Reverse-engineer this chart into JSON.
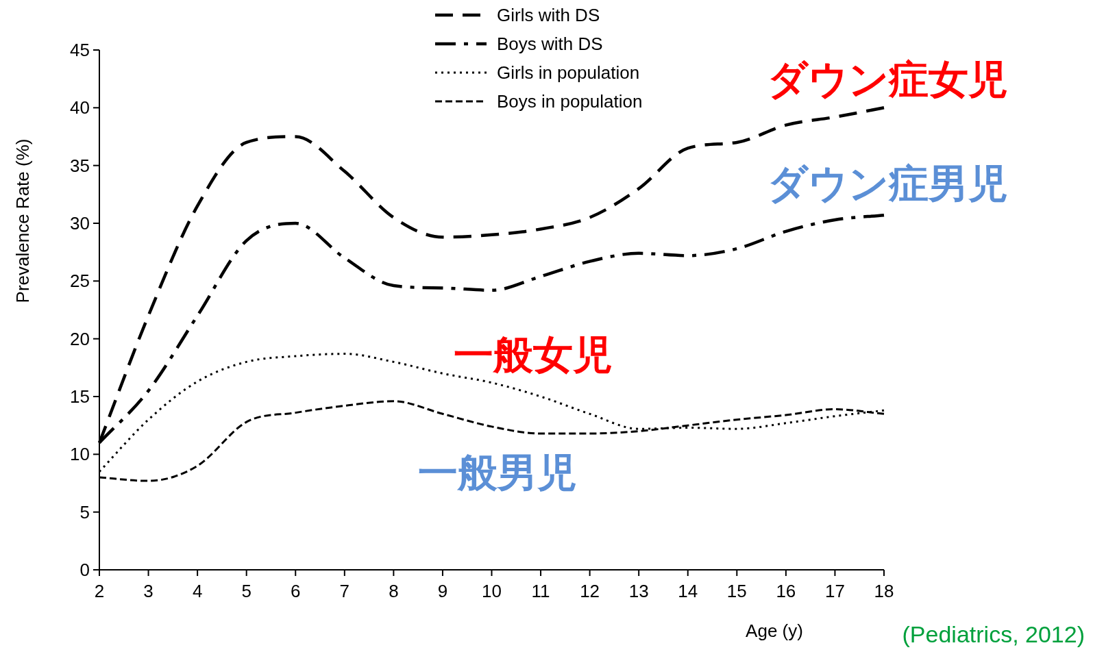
{
  "chart_data": {
    "type": "line",
    "xlabel": "Age (y)",
    "ylabel": "Prevalence Rate (%)",
    "x": [
      2,
      3,
      4,
      5,
      6,
      7,
      8,
      9,
      10,
      11,
      12,
      13,
      14,
      15,
      16,
      17,
      18
    ],
    "xlim": [
      2,
      18
    ],
    "xticks": [
      2,
      3,
      4,
      5,
      6,
      7,
      8,
      9,
      10,
      11,
      12,
      13,
      14,
      15,
      16,
      17,
      18
    ],
    "ylim": [
      0,
      45
    ],
    "yticks": [
      0,
      5,
      10,
      15,
      20,
      25,
      30,
      35,
      40,
      45
    ],
    "grid": false,
    "legend": "top",
    "marker": "none",
    "series": [
      {
        "name": "Girls with DS",
        "color": "#000000",
        "line_style": "dashed",
        "values": [
          11,
          22,
          31.5,
          37,
          37.5,
          34.5,
          30.5,
          28.8,
          29,
          29.5,
          30.5,
          33,
          36.5,
          37,
          38.5,
          39.2,
          40
        ]
      },
      {
        "name": "Boys with DS",
        "color": "#000000",
        "line_style": "dashed",
        "values": [
          11,
          15.5,
          22,
          28.5,
          30,
          27,
          24.6,
          24.4,
          24.2,
          25.4,
          26.7,
          27.4,
          27.2,
          27.8,
          29.3,
          30.3,
          30.7
        ]
      },
      {
        "name": "Girls in population",
        "color": "#000000",
        "line_style": "dotted",
        "values": [
          8.5,
          13,
          16.3,
          18,
          18.5,
          18.7,
          18,
          17,
          16.2,
          15,
          13.5,
          12.2,
          12.3,
          12.2,
          12.7,
          13.3,
          13.8
        ]
      },
      {
        "name": "Boys in population",
        "color": "#000000",
        "line_style": "dashed",
        "values": [
          8,
          7.7,
          9,
          12.8,
          13.6,
          14.2,
          14.6,
          13.5,
          12.4,
          11.8,
          11.8,
          12,
          12.5,
          13,
          13.4,
          13.9,
          13.5
        ]
      }
    ],
    "annotations": [
      "ダウン症女児",
      "ダウン症男児",
      "一般女児",
      "一般男児",
      "(Pediatrics, 2012)"
    ]
  }
}
